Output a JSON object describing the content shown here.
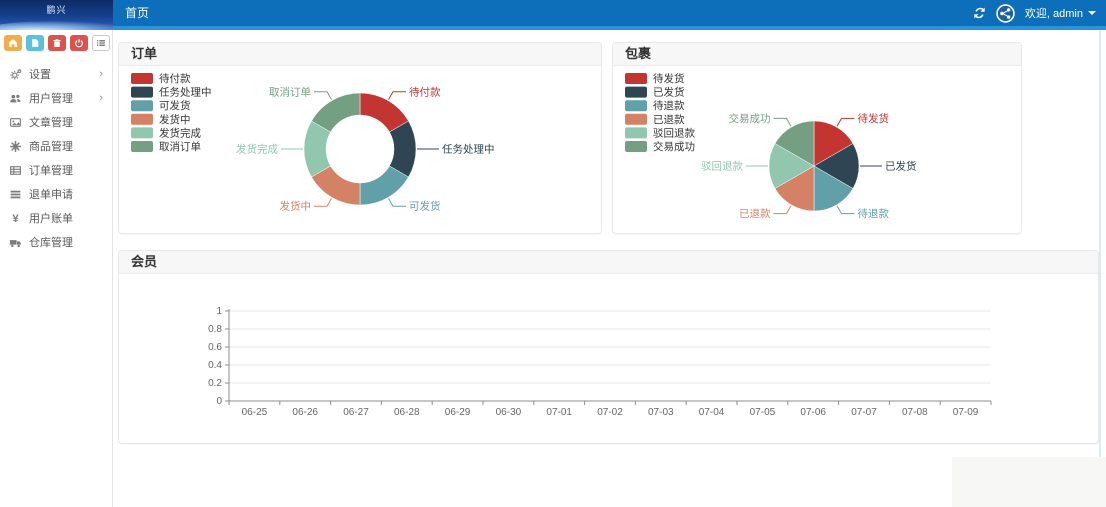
{
  "navbar": {
    "brand_text": "鹏兴",
    "home_tab": "首页",
    "welcome_text": "欢迎, admin",
    "colors": {
      "bar": "#0d6fb9",
      "bar_edge": "#2b93dc"
    }
  },
  "sidebar": {
    "quick_buttons": [
      {
        "name": "home-button",
        "icon": "home-icon",
        "color": "#f0ad4e"
      },
      {
        "name": "file-button",
        "icon": "file-icon",
        "color": "#5bc0de"
      },
      {
        "name": "trash-button",
        "icon": "trash-icon",
        "color": "#d9534f"
      },
      {
        "name": "power-button",
        "icon": "power-icon",
        "color": "#d9534f"
      },
      {
        "name": "list-button",
        "icon": "list-icon",
        "color": "#ffffff"
      }
    ],
    "items": [
      {
        "name": "settings",
        "label": "设置",
        "icon": "gears-icon",
        "expandable": true
      },
      {
        "name": "user-management",
        "label": "用户管理",
        "icon": "users-icon",
        "expandable": true
      },
      {
        "name": "article-management",
        "label": "文章管理",
        "icon": "article-icon",
        "expandable": false
      },
      {
        "name": "product-management",
        "label": "商品管理",
        "icon": "products-icon",
        "expandable": false
      },
      {
        "name": "order-management",
        "label": "订单管理",
        "icon": "orders-icon",
        "expandable": false
      },
      {
        "name": "refund-request",
        "label": "退单申请",
        "icon": "refund-icon",
        "expandable": false
      },
      {
        "name": "user-bills",
        "label": "用户账单",
        "icon": "bills-icon",
        "expandable": false
      },
      {
        "name": "warehouse-management",
        "label": "仓库管理",
        "icon": "warehouse-icon",
        "expandable": false
      }
    ]
  },
  "chart_data": [
    {
      "type": "pie",
      "variant": "donut",
      "title": "订单",
      "labels": [
        "待付款",
        "任务处理中",
        "可发货",
        "发货中",
        "发货完成",
        "取消订单"
      ],
      "values": [
        1,
        1,
        1,
        1,
        1,
        1
      ],
      "colors": [
        "#c23531",
        "#2f4554",
        "#61a0a8",
        "#d48265",
        "#91c7ae",
        "#749f83"
      ],
      "legend_position": "top-left",
      "labels_on_chart": true
    },
    {
      "type": "pie",
      "variant": "full",
      "title": "包裹",
      "labels": [
        "待发货",
        "已发货",
        "待退款",
        "已退款",
        "驳回退款",
        "交易成功"
      ],
      "values": [
        1,
        1,
        1,
        1,
        1,
        1
      ],
      "colors": [
        "#c23531",
        "#2f4554",
        "#61a0a8",
        "#d48265",
        "#91c7ae",
        "#749f83"
      ],
      "legend_position": "top-left",
      "labels_on_chart": true
    },
    {
      "type": "line",
      "title": "会员",
      "categories": [
        "06-25",
        "06-26",
        "06-27",
        "06-28",
        "06-29",
        "06-30",
        "07-01",
        "07-02",
        "07-03",
        "07-04",
        "07-05",
        "07-06",
        "07-07",
        "07-08",
        "07-09"
      ],
      "series": [],
      "yticks": [
        0,
        0.2,
        0.4,
        0.6,
        0.8,
        1
      ],
      "ylim": [
        0,
        1
      ],
      "grid": true,
      "xlabel": "",
      "ylabel": ""
    }
  ]
}
